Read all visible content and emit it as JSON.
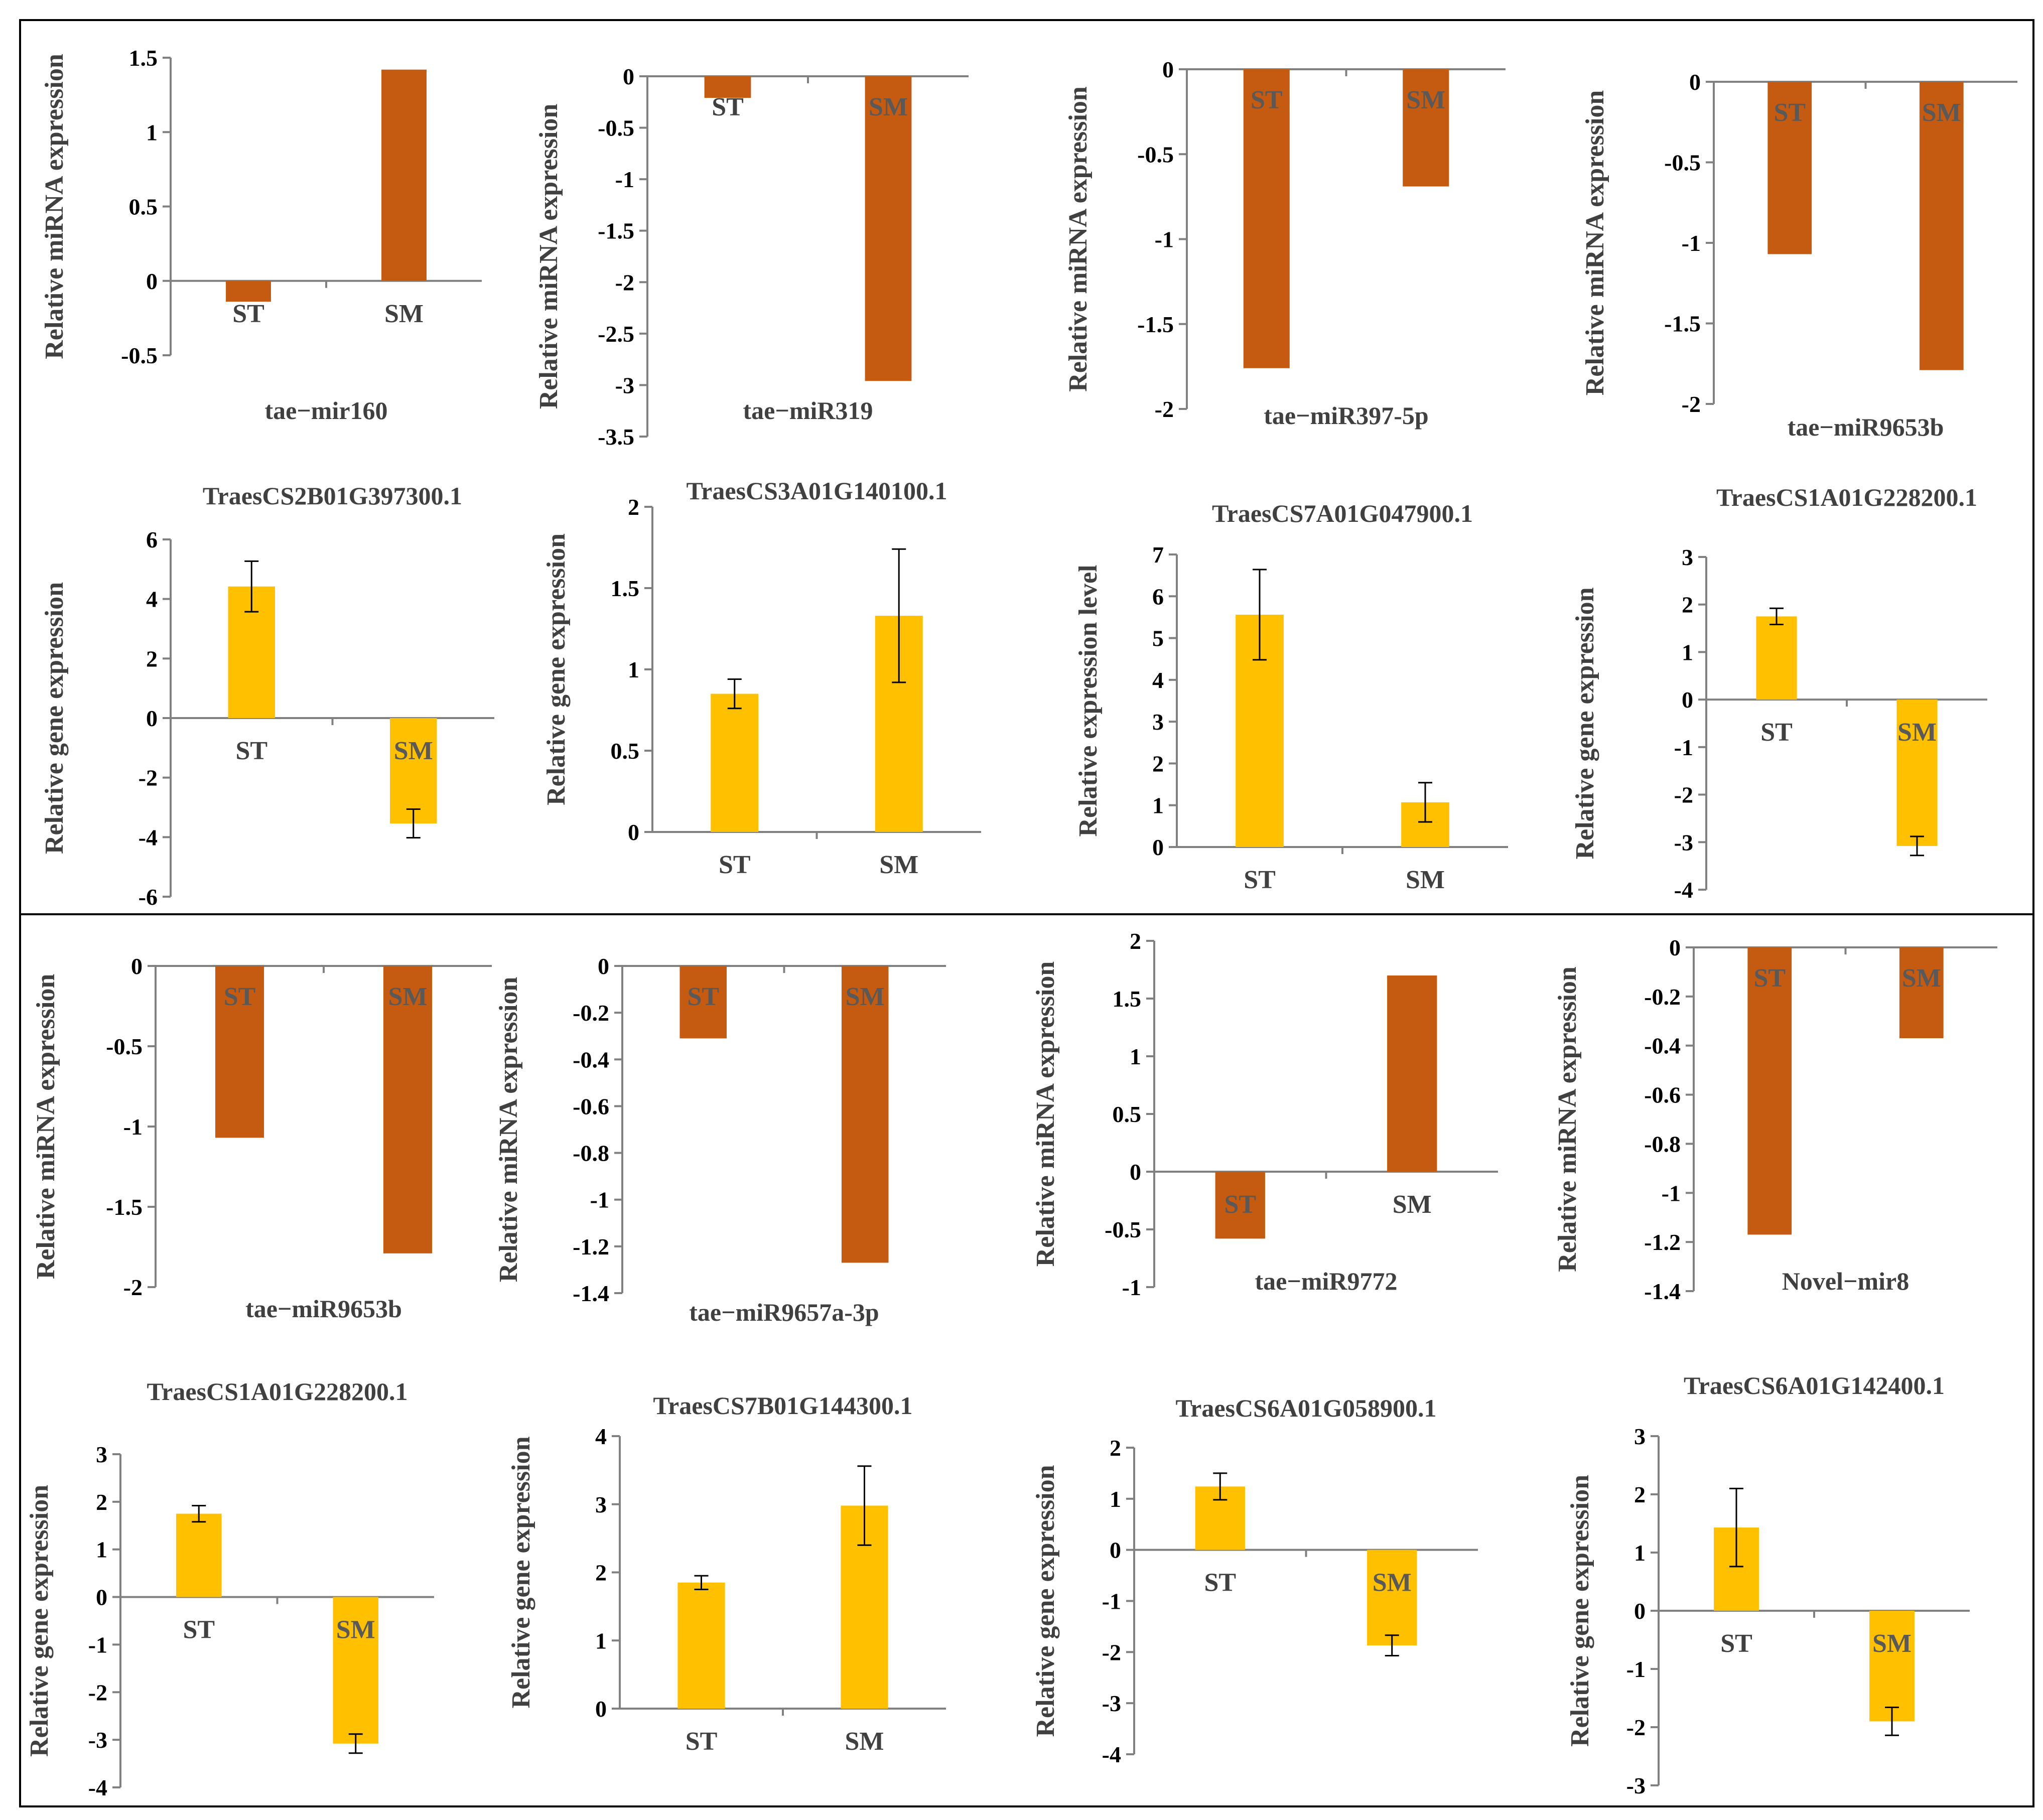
{
  "colors": {
    "mirna_bar": "#C55A11",
    "gene_bar": "#FFC000",
    "axis": "#808080",
    "text": "#404040",
    "border": "#000000"
  },
  "chart_data": [
    {
      "type": "bar",
      "title": "tae−mir160",
      "ylabel": "Relative miRNA expression",
      "categories": [
        "ST",
        "SM"
      ],
      "values": [
        -0.14,
        1.42
      ],
      "ylim": [
        -0.5,
        1.5
      ],
      "yticks": [
        "-0.5",
        "0",
        "0.5",
        "1",
        "1.5"
      ],
      "bar_color": "#C55A11",
      "title_position": "bottom",
      "cat_labels_position": "axis"
    },
    {
      "type": "bar",
      "title": "tae−miR319",
      "ylabel": "Relative miRNA expression",
      "categories": [
        "ST",
        "SM"
      ],
      "values": [
        -0.21,
        -2.96
      ],
      "ylim": [
        -3.5,
        0
      ],
      "yticks": [
        "-3.5",
        "-3",
        "-2.5",
        "-2",
        "-1.5",
        "-1",
        "-0.5",
        "0"
      ],
      "bar_color": "#C55A11",
      "title_position": "bottom",
      "cat_labels_position": "inside"
    },
    {
      "type": "bar",
      "title": "tae−miR397-5p",
      "ylabel": "Relative miRNA expression",
      "categories": [
        "ST",
        "SM"
      ],
      "values": [
        -1.76,
        -0.69
      ],
      "ylim": [
        -2,
        0
      ],
      "yticks": [
        "-2",
        "-1.5",
        "-1",
        "-0.5",
        "0"
      ],
      "bar_color": "#C55A11",
      "title_position": "bottom",
      "cat_labels_position": "inside"
    },
    {
      "type": "bar",
      "title": "tae−miR9653b",
      "ylabel": "Relative miRNA expression",
      "categories": [
        "ST",
        "SM"
      ],
      "values": [
        -1.07,
        -1.79
      ],
      "ylim": [
        -2,
        0
      ],
      "yticks": [
        "-2",
        "-1.5",
        "-1",
        "-0.5",
        "0"
      ],
      "bar_color": "#C55A11",
      "title_position": "bottom",
      "cat_labels_position": "inside"
    },
    {
      "type": "bar",
      "title": "TraesCS2B01G397300.1",
      "ylabel": "Relative gene expression",
      "categories": [
        "ST",
        "SM"
      ],
      "values": [
        4.42,
        -3.54
      ],
      "errors": [
        0.85,
        0.48
      ],
      "ylim": [
        -6,
        6
      ],
      "yticks": [
        "-6",
        "-4",
        "-2",
        "0",
        "2",
        "4",
        "6"
      ],
      "bar_color": "#FFC000",
      "title_position": "top",
      "cat_labels_position": "axis"
    },
    {
      "type": "bar",
      "title": "TraesCS3A01G140100.1",
      "ylabel": "Relative gene expression",
      "categories": [
        "ST",
        "SM"
      ],
      "values": [
        0.85,
        1.33
      ],
      "errors": [
        0.09,
        0.41
      ],
      "ylim": [
        0,
        2
      ],
      "yticks": [
        "0",
        "0.5",
        "1",
        "1.5",
        "2"
      ],
      "bar_color": "#FFC000",
      "title_position": "top",
      "cat_labels_position": "axis"
    },
    {
      "type": "bar",
      "title": "TraesCS7A01G047900.1",
      "ylabel": "Relative expression level",
      "categories": [
        "ST",
        "SM"
      ],
      "values": [
        5.56,
        1.07
      ],
      "errors": [
        1.08,
        0.47
      ],
      "ylim": [
        0,
        7
      ],
      "yticks": [
        "0",
        "1",
        "2",
        "3",
        "4",
        "5",
        "6",
        "7"
      ],
      "bar_color": "#FFC000",
      "title_position": "top",
      "cat_labels_position": "axis"
    },
    {
      "type": "bar",
      "title": "TraesCS1A01G228200.1",
      "ylabel": "Relative gene expression",
      "categories": [
        "ST",
        "SM"
      ],
      "values": [
        1.75,
        -3.08
      ],
      "errors": [
        0.17,
        0.2
      ],
      "ylim": [
        -4,
        3
      ],
      "yticks": [
        "-4",
        "-3",
        "-2",
        "-1",
        "0",
        "1",
        "2",
        "3"
      ],
      "bar_color": "#FFC000",
      "title_position": "top",
      "cat_labels_position": "axis"
    },
    {
      "type": "bar",
      "title": "tae−miR9653b",
      "ylabel": "Relative miRNA expression",
      "categories": [
        "ST",
        "SM"
      ],
      "values": [
        -1.07,
        -1.79
      ],
      "ylim": [
        -2,
        0
      ],
      "yticks": [
        "-2",
        "-1.5",
        "-1",
        "-0.5",
        "0"
      ],
      "bar_color": "#C55A11",
      "title_position": "bottom",
      "cat_labels_position": "inside"
    },
    {
      "type": "bar",
      "title": "tae−miR9657a-3p",
      "ylabel": "Relative miRNA expression",
      "categories": [
        "ST",
        "SM"
      ],
      "values": [
        -0.31,
        -1.27
      ],
      "ylim": [
        -1.4,
        0
      ],
      "yticks": [
        "-1.4",
        "-1.2",
        "-1",
        "-0.8",
        "-0.6",
        "-0.4",
        "-0.2",
        "0"
      ],
      "bar_color": "#C55A11",
      "title_position": "bottom",
      "cat_labels_position": "inside"
    },
    {
      "type": "bar",
      "title": "tae−miR9772",
      "ylabel": "Relative miRNA expression",
      "categories": [
        "ST",
        "SM"
      ],
      "values": [
        -0.58,
        1.7
      ],
      "ylim": [
        -1,
        2
      ],
      "yticks": [
        "-1",
        "-0.5",
        "0",
        "0.5",
        "1",
        "1.5",
        "2"
      ],
      "bar_color": "#C55A11",
      "title_position": "bottom",
      "cat_labels_position": "axis"
    },
    {
      "type": "bar",
      "title": "Novel−mir8",
      "ylabel": "Relative miRNA expression",
      "categories": [
        "ST",
        "SM"
      ],
      "values": [
        -1.17,
        -0.37
      ],
      "ylim": [
        -1.4,
        0
      ],
      "yticks": [
        "-1.4",
        "-1.2",
        "-1",
        "-0.8",
        "-0.6",
        "-0.4",
        "-0.2",
        "0"
      ],
      "bar_color": "#C55A11",
      "title_position": "bottom",
      "cat_labels_position": "inside"
    },
    {
      "type": "bar",
      "title": "TraesCS1A01G228200.1",
      "ylabel": "Relative gene expression",
      "categories": [
        "ST",
        "SM"
      ],
      "values": [
        1.75,
        -3.08
      ],
      "errors": [
        0.17,
        0.2
      ],
      "ylim": [
        -4,
        3
      ],
      "yticks": [
        "-4",
        "-3",
        "-2",
        "-1",
        "0",
        "1",
        "2",
        "3"
      ],
      "bar_color": "#FFC000",
      "title_position": "top",
      "cat_labels_position": "axis"
    },
    {
      "type": "bar",
      "title": "TraesCS7B01G144300.1",
      "ylabel": "Relative gene expression",
      "categories": [
        "ST",
        "SM"
      ],
      "values": [
        1.85,
        2.98
      ],
      "errors": [
        0.1,
        0.58
      ],
      "ylim": [
        0,
        4
      ],
      "yticks": [
        "0",
        "1",
        "2",
        "3",
        "4"
      ],
      "bar_color": "#FFC000",
      "title_position": "top",
      "cat_labels_position": "axis"
    },
    {
      "type": "bar",
      "title": "TraesCS6A01G058900.1",
      "ylabel": "Relative gene expression",
      "categories": [
        "ST",
        "SM"
      ],
      "values": [
        1.24,
        -1.87
      ],
      "errors": [
        0.26,
        0.2
      ],
      "ylim": [
        -4,
        2
      ],
      "yticks": [
        "-4",
        "-3",
        "-2",
        "-1",
        "0",
        "1",
        "2"
      ],
      "bar_color": "#FFC000",
      "title_position": "top",
      "cat_labels_position": "axis"
    },
    {
      "type": "bar",
      "title": "TraesCS6A01G142400.1",
      "ylabel": "Relative gene expression",
      "categories": [
        "ST",
        "SM"
      ],
      "values": [
        1.43,
        -1.9
      ],
      "errors": [
        0.67,
        0.24
      ],
      "ylim": [
        -3,
        3
      ],
      "yticks": [
        "-3",
        "-2",
        "-1",
        "0",
        "1",
        "2",
        "3"
      ],
      "bar_color": "#FFC000",
      "title_position": "top",
      "cat_labels_position": "axis"
    }
  ]
}
